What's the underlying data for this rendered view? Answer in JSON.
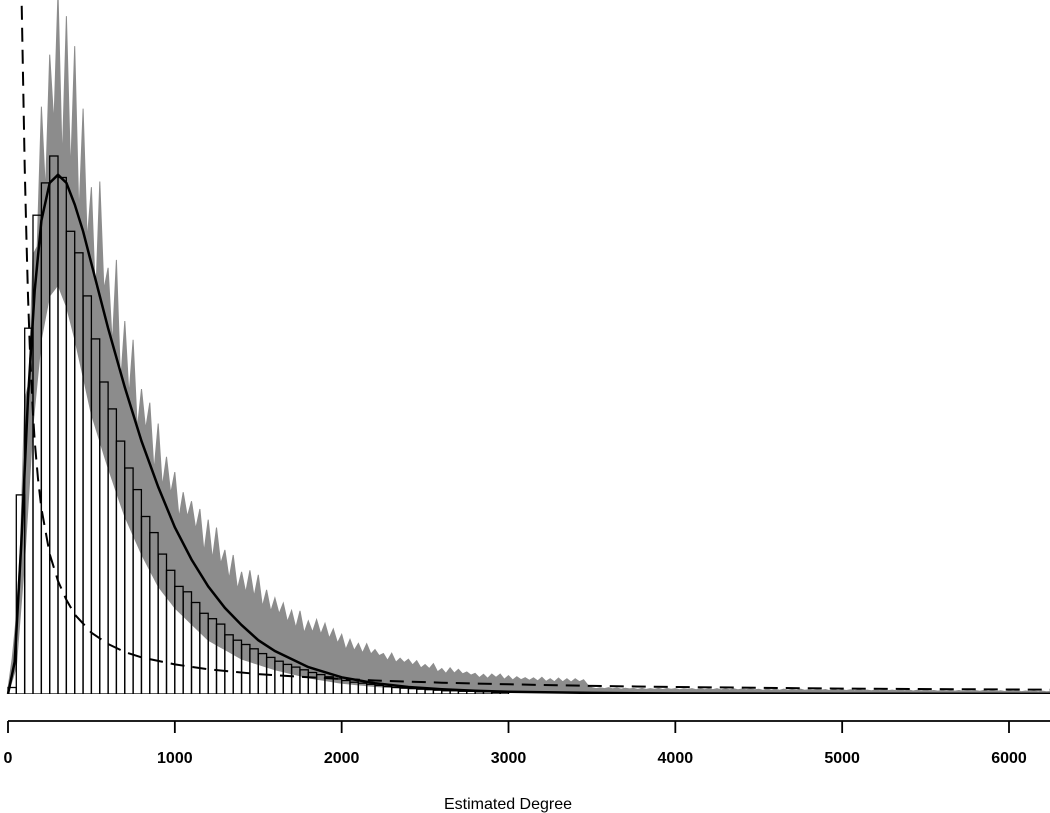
{
  "chart_data": {
    "type": "bar",
    "title": "",
    "xlabel": "Estimated Degree",
    "ylabel": "",
    "xlim": [
      0,
      6250
    ],
    "x_ticks": [
      0,
      1000,
      2000,
      3000,
      4000,
      5000,
      6000
    ],
    "x_tick_labels": [
      "0",
      "1000",
      "2000",
      "3000",
      "4000",
      "5000",
      "6000"
    ],
    "y_axis_shown": false,
    "grid": false,
    "legend": "none",
    "colors": {
      "histogram": "#000000",
      "simulated_band": "#8c8c8c",
      "fitted_line": "#000000"
    },
    "histogram": {
      "bin_width": 50,
      "bin_start": 0,
      "max_relative_height": 1.0,
      "relative_heights": [
        0.012,
        0.37,
        0.68,
        0.89,
        0.95,
        1.0,
        0.96,
        0.86,
        0.82,
        0.74,
        0.66,
        0.58,
        0.53,
        0.47,
        0.42,
        0.38,
        0.33,
        0.3,
        0.26,
        0.23,
        0.2,
        0.19,
        0.17,
        0.15,
        0.14,
        0.13,
        0.11,
        0.1,
        0.092,
        0.084,
        0.075,
        0.068,
        0.061,
        0.055,
        0.05,
        0.045,
        0.04,
        0.036,
        0.032,
        0.028,
        0.025,
        0.022,
        0.02,
        0.018,
        0.016,
        0.014,
        0.012,
        0.011,
        0.01,
        0.009,
        0.008,
        0.007,
        0.006,
        0.006,
        0.005,
        0.005,
        0.004,
        0.004,
        0.003,
        0.003
      ]
    },
    "simulated_band": {
      "description_x": [
        0,
        50,
        100,
        150,
        200,
        250,
        300,
        350,
        400,
        450,
        500,
        600,
        700,
        800,
        900,
        1000,
        1200,
        1400,
        1600,
        1800,
        2000,
        2200,
        2400,
        2600,
        2800,
        3000,
        3200,
        3450,
        3500,
        4000,
        4500,
        5000,
        5500,
        6000,
        6250
      ],
      "upper": [
        0.01,
        0.15,
        0.55,
        0.86,
        1.08,
        1.22,
        1.28,
        1.26,
        1.18,
        1.08,
        0.98,
        0.83,
        0.7,
        0.59,
        0.5,
        0.42,
        0.32,
        0.24,
        0.18,
        0.14,
        0.11,
        0.085,
        0.065,
        0.05,
        0.04,
        0.034,
        0.03,
        0.028,
        0.012,
        0.01,
        0.009,
        0.008,
        0.007,
        0.006,
        0.005
      ],
      "lower": [
        0.0,
        0.05,
        0.25,
        0.5,
        0.66,
        0.74,
        0.76,
        0.72,
        0.66,
        0.59,
        0.52,
        0.42,
        0.33,
        0.26,
        0.2,
        0.16,
        0.1,
        0.065,
        0.045,
        0.03,
        0.02,
        0.014,
        0.01,
        0.008,
        0.006,
        0.005,
        0.004,
        0.003,
        0.002,
        0.002,
        0.002,
        0.002,
        0.002,
        0.002,
        0.002
      ]
    },
    "fitted_solid": {
      "x": [
        0,
        40,
        80,
        120,
        160,
        200,
        250,
        300,
        350,
        400,
        450,
        500,
        600,
        700,
        800,
        900,
        1000,
        1100,
        1200,
        1300,
        1400,
        1500,
        1600,
        1800,
        2000,
        2200,
        2400,
        2600,
        2800,
        3000,
        3500,
        4000,
        5000,
        6250
      ],
      "y": [
        0.0,
        0.06,
        0.28,
        0.55,
        0.75,
        0.88,
        0.95,
        0.965,
        0.95,
        0.91,
        0.86,
        0.8,
        0.68,
        0.57,
        0.47,
        0.385,
        0.31,
        0.25,
        0.2,
        0.16,
        0.128,
        0.1,
        0.08,
        0.05,
        0.031,
        0.02,
        0.013,
        0.009,
        0.006,
        0.004,
        0.002,
        0.001,
        0.0005,
        0.0002
      ]
    },
    "fitted_dashed": {
      "x": [
        80,
        90,
        100,
        110,
        120,
        130,
        140,
        150,
        160,
        180,
        200,
        250,
        300,
        350,
        400,
        500,
        600,
        700,
        800,
        1000,
        1200,
        1500,
        1800,
        2200,
        2600,
        3000,
        3500,
        4000,
        5000,
        6250
      ],
      "y": [
        1.32,
        1.15,
        0.98,
        0.85,
        0.74,
        0.65,
        0.58,
        0.52,
        0.47,
        0.4,
        0.345,
        0.26,
        0.21,
        0.175,
        0.148,
        0.114,
        0.093,
        0.078,
        0.068,
        0.055,
        0.046,
        0.037,
        0.031,
        0.025,
        0.021,
        0.018,
        0.015,
        0.013,
        0.01,
        0.008
      ]
    }
  }
}
